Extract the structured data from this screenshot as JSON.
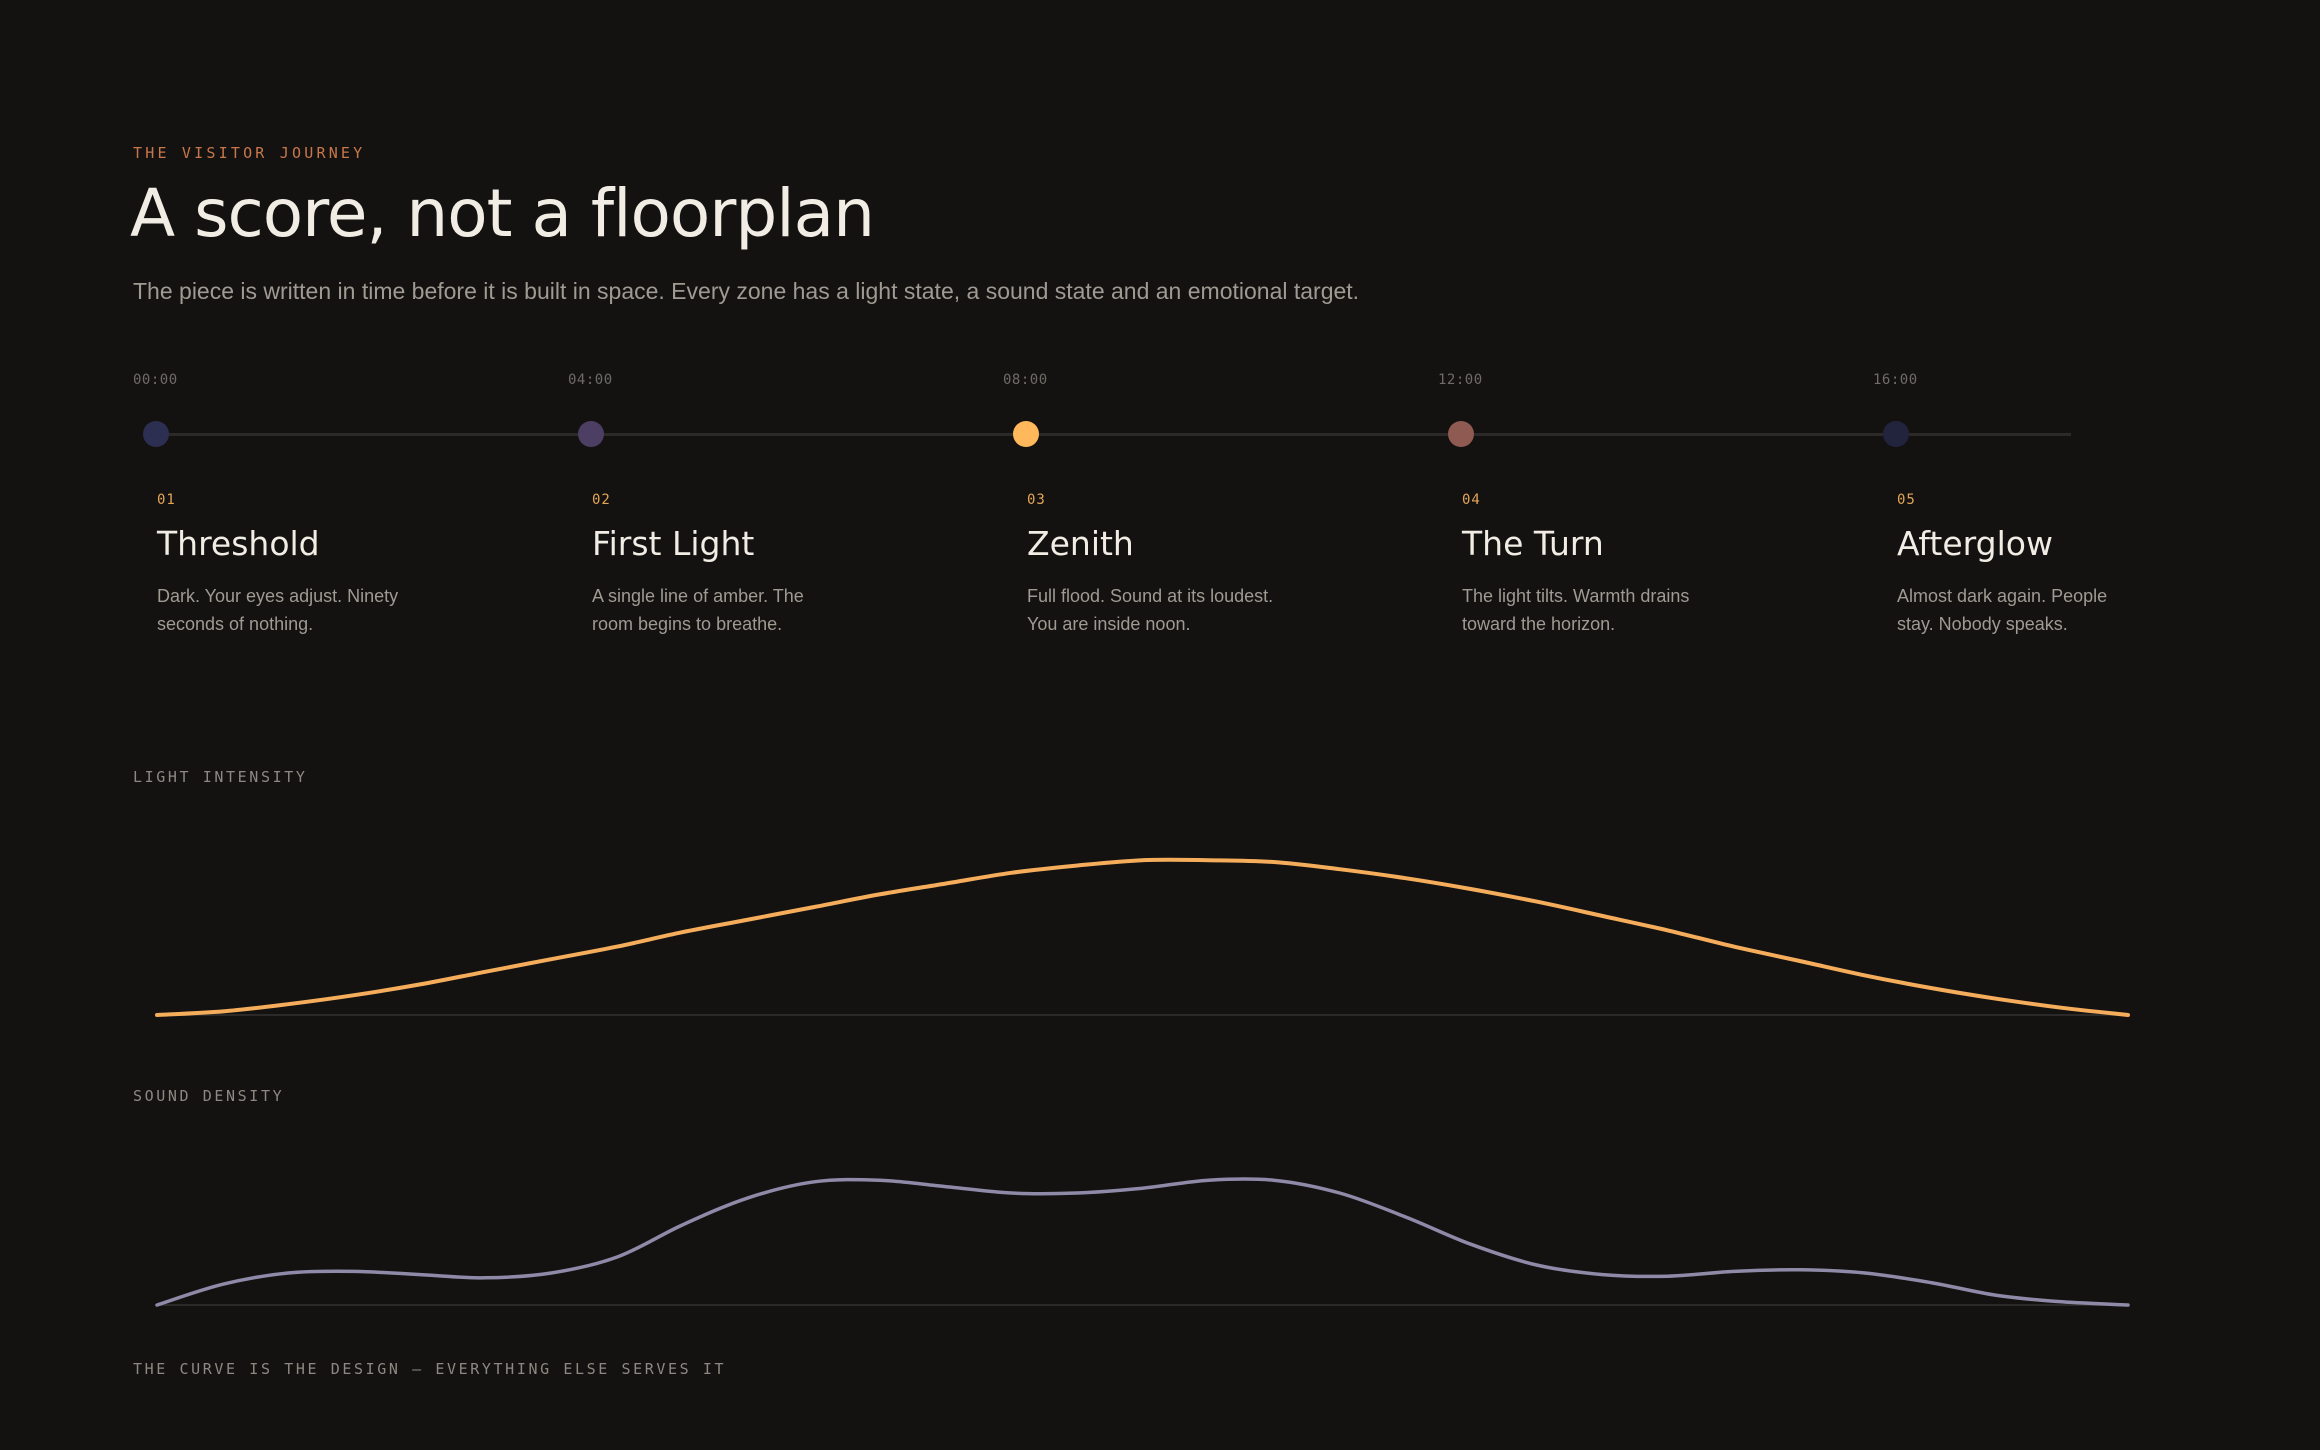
{
  "header": {
    "eyebrow": "THE VISITOR JOURNEY",
    "title": "A score, not a floorplan",
    "subtitle": "The piece is written in time before it is built in space. Every zone has a light state, a sound state and an emotional target."
  },
  "timeline": {
    "times": [
      "00:00",
      "04:00",
      "08:00",
      "12:00",
      "16:00"
    ],
    "stages": [
      {
        "num": "01",
        "title": "Threshold",
        "desc": "Dark. Your eyes adjust. Ninety seconds of nothing.",
        "color": "#2c2e52"
      },
      {
        "num": "02",
        "title": "First Light",
        "desc": "A single line of amber. The room begins to breathe.",
        "color": "#4d3f63"
      },
      {
        "num": "03",
        "title": "Zenith",
        "desc": "Full flood. Sound at its loudest. You are inside noon.",
        "color": "#ffb85c"
      },
      {
        "num": "04",
        "title": "The Turn",
        "desc": "The light tilts. Warmth drains toward the horizon.",
        "color": "#8f5a52"
      },
      {
        "num": "05",
        "title": "Afterglow",
        "desc": "Almost dark again. People stay. Nobody speaks.",
        "color": "#22243d"
      }
    ]
  },
  "chart_data": [
    {
      "type": "line",
      "title": "LIGHT INTENSITY",
      "color": "#f5ad5c",
      "x_unit": "minutes",
      "x": [
        0,
        0.67,
        1.33,
        2,
        2.67,
        3.33,
        4,
        4.67,
        5.33,
        6,
        6.67,
        7.33,
        8,
        8.67,
        9.33,
        10,
        10.67,
        11.33,
        12,
        12.67,
        13.33,
        14,
        14.67,
        15.33,
        16,
        16.67,
        17.33,
        18,
        18.67,
        19.33,
        20
      ],
      "y": [
        0,
        0.02,
        0.06,
        0.11,
        0.17,
        0.24,
        0.31,
        0.38,
        0.46,
        0.53,
        0.6,
        0.67,
        0.73,
        0.79,
        0.83,
        0.86,
        0.86,
        0.85,
        0.81,
        0.76,
        0.7,
        0.63,
        0.55,
        0.47,
        0.38,
        0.3,
        0.22,
        0.15,
        0.09,
        0.04,
        0
      ],
      "ylim": [
        0,
        1
      ]
    },
    {
      "type": "line",
      "title": "SOUND DENSITY",
      "color": "#8f8aa8",
      "x_unit": "minutes",
      "x": [
        0,
        0.67,
        1.33,
        2,
        2.67,
        3.33,
        4,
        4.67,
        5.33,
        6,
        6.67,
        7.33,
        8,
        8.67,
        9.33,
        10,
        10.67,
        11.33,
        12,
        12.67,
        13.33,
        14,
        14.67,
        15.33,
        16,
        16.67,
        17.33,
        18,
        18.67,
        19.33,
        20
      ],
      "y": [
        0,
        0.13,
        0.2,
        0.21,
        0.19,
        0.17,
        0.2,
        0.3,
        0.5,
        0.67,
        0.77,
        0.78,
        0.74,
        0.7,
        0.7,
        0.73,
        0.78,
        0.78,
        0.7,
        0.55,
        0.38,
        0.25,
        0.19,
        0.18,
        0.21,
        0.22,
        0.2,
        0.14,
        0.06,
        0.02,
        0
      ],
      "ylim": [
        0,
        1
      ]
    }
  ],
  "footer": {
    "note": "THE CURVE IS THE DESIGN — EVERYTHING ELSE SERVES IT"
  }
}
